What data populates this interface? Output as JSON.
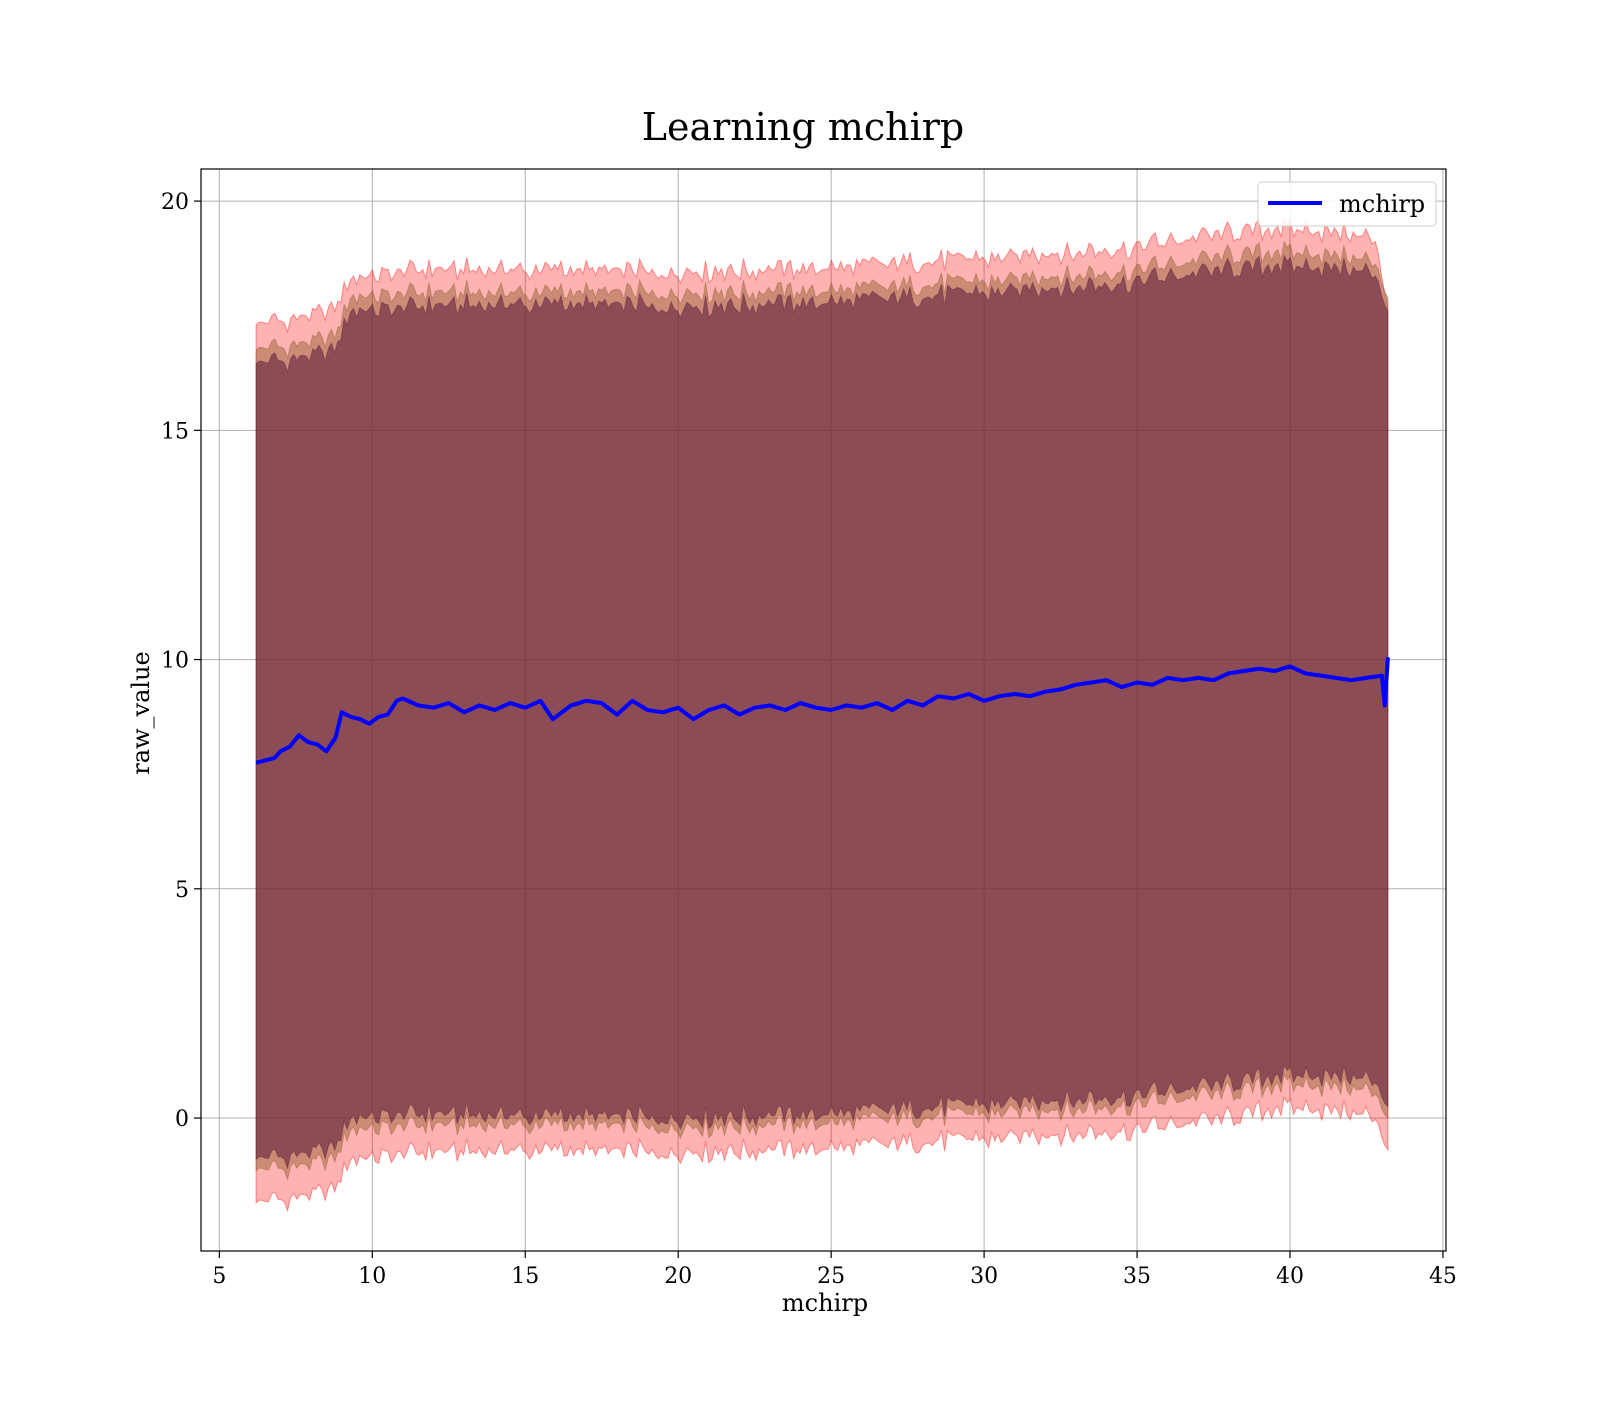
{
  "chart_data": {
    "type": "line",
    "title": "Learning mchirp",
    "xlabel": "mchirp",
    "ylabel": "raw_value",
    "xlim": [
      4.4,
      45.1
    ],
    "ylim": [
      -2.9,
      20.7
    ],
    "xticks": [
      5,
      10,
      15,
      20,
      25,
      30,
      35,
      40,
      45
    ],
    "yticks": [
      0,
      5,
      10,
      15,
      20
    ],
    "grid": true,
    "legend": {
      "position": "upper right",
      "entries": [
        "mchirp"
      ]
    },
    "colors": {
      "line": "#0000ff",
      "band_outer": "#ff0000",
      "band_mid": "#8b5a2b",
      "band_inner": "#5a1a3a"
    },
    "series": [
      {
        "name": "mchirp",
        "x": [
          6.2,
          6.5,
          6.8,
          7.0,
          7.3,
          7.6,
          7.9,
          8.2,
          8.5,
          8.8,
          9.0,
          9.3,
          9.6,
          9.9,
          10.2,
          10.5,
          10.8,
          11.0,
          11.5,
          12.0,
          12.5,
          13.0,
          13.5,
          14.0,
          14.5,
          15.0,
          15.5,
          15.9,
          16.5,
          17.0,
          17.5,
          18.0,
          18.5,
          19.0,
          19.5,
          20.0,
          20.5,
          21.0,
          21.5,
          22.0,
          22.5,
          23.0,
          23.5,
          24.0,
          24.5,
          25.0,
          25.5,
          26.0,
          26.5,
          27.0,
          27.5,
          28.0,
          28.5,
          29.0,
          29.5,
          30.0,
          30.5,
          31.0,
          31.5,
          32.0,
          32.5,
          33.0,
          33.5,
          34.0,
          34.5,
          35.0,
          35.5,
          36.0,
          36.5,
          37.0,
          37.5,
          38.0,
          38.5,
          39.0,
          39.5,
          40.0,
          40.5,
          41.0,
          41.5,
          42.0,
          42.5,
          43.0,
          43.1,
          43.2
        ],
        "y": [
          7.75,
          7.8,
          7.85,
          8.0,
          8.1,
          8.35,
          8.2,
          8.15,
          8.0,
          8.3,
          8.85,
          8.75,
          8.7,
          8.6,
          8.75,
          8.8,
          9.1,
          9.15,
          9.0,
          8.95,
          9.05,
          8.85,
          9.0,
          8.9,
          9.05,
          8.95,
          9.1,
          8.7,
          9.0,
          9.1,
          9.05,
          8.8,
          9.1,
          8.9,
          8.85,
          8.95,
          8.7,
          8.9,
          9.0,
          8.8,
          8.95,
          9.0,
          8.9,
          9.05,
          8.95,
          8.9,
          9.0,
          8.95,
          9.05,
          8.9,
          9.1,
          9.0,
          9.2,
          9.15,
          9.25,
          9.1,
          9.2,
          9.25,
          9.2,
          9.3,
          9.35,
          9.45,
          9.5,
          9.55,
          9.4,
          9.5,
          9.45,
          9.6,
          9.55,
          9.6,
          9.55,
          9.7,
          9.75,
          9.8,
          9.75,
          9.85,
          9.7,
          9.65,
          9.6,
          9.55,
          9.6,
          9.65,
          9.0,
          10.05
        ]
      }
    ],
    "bands": [
      {
        "x": [
          6.2,
          8.8,
          9.3,
          11.0,
          15.0,
          20.0,
          25.0,
          30.0,
          35.0,
          38.0,
          40.0,
          42.8,
          43.2
        ],
        "upper": [
          17.3,
          17.6,
          18.3,
          18.5,
          18.5,
          18.45,
          18.55,
          18.75,
          19.0,
          19.3,
          19.4,
          19.2,
          17.7
        ],
        "lower": [
          -1.85,
          -1.6,
          -0.9,
          -0.75,
          -0.7,
          -0.75,
          -0.65,
          -0.45,
          -0.25,
          0.0,
          0.25,
          0.05,
          -0.7
        ]
      },
      {
        "x": [
          6.2,
          8.8,
          9.3,
          11.0,
          15.0,
          20.0,
          25.0,
          30.0,
          35.0,
          38.0,
          40.0,
          42.8,
          43.2
        ],
        "upper": [
          16.75,
          17.0,
          17.9,
          18.0,
          18.0,
          18.0,
          18.05,
          18.25,
          18.5,
          18.8,
          18.9,
          18.7,
          17.9
        ],
        "lower": [
          -1.15,
          -0.95,
          -0.25,
          -0.15,
          -0.15,
          -0.2,
          -0.1,
          0.1,
          0.3,
          0.55,
          0.75,
          0.6,
          0.0
        ]
      },
      {
        "x": [
          6.2,
          8.8,
          9.3,
          11.0,
          15.0,
          20.0,
          25.0,
          30.0,
          35.0,
          38.0,
          40.0,
          42.8,
          43.2
        ],
        "upper": [
          16.45,
          16.7,
          17.6,
          17.7,
          17.75,
          17.7,
          17.8,
          18.0,
          18.25,
          18.5,
          18.6,
          18.45,
          17.6
        ],
        "lower": [
          -0.9,
          -0.7,
          0.0,
          0.1,
          0.05,
          0.0,
          0.1,
          0.3,
          0.5,
          0.75,
          0.95,
          0.85,
          0.25
        ]
      }
    ]
  }
}
